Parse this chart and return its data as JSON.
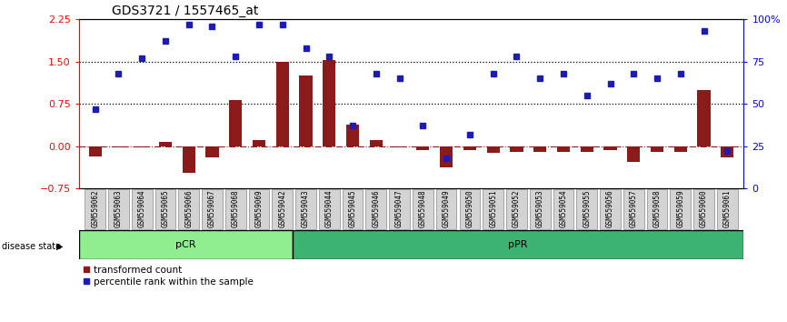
{
  "title": "GDS3721 / 1557465_at",
  "samples": [
    "GSM559062",
    "GSM559063",
    "GSM559064",
    "GSM559065",
    "GSM559066",
    "GSM559067",
    "GSM559068",
    "GSM559069",
    "GSM559042",
    "GSM559043",
    "GSM559044",
    "GSM559045",
    "GSM559046",
    "GSM559047",
    "GSM559048",
    "GSM559049",
    "GSM559050",
    "GSM559051",
    "GSM559052",
    "GSM559053",
    "GSM559054",
    "GSM559055",
    "GSM559056",
    "GSM559057",
    "GSM559058",
    "GSM559059",
    "GSM559060",
    "GSM559061"
  ],
  "transformed_count": [
    -0.18,
    -0.02,
    -0.02,
    0.07,
    -0.48,
    -0.2,
    0.82,
    0.1,
    1.5,
    1.25,
    1.52,
    0.38,
    0.1,
    -0.03,
    -0.07,
    -0.38,
    -0.07,
    -0.12,
    -0.1,
    -0.1,
    -0.1,
    -0.1,
    -0.07,
    -0.28,
    -0.1,
    -0.1,
    1.0,
    -0.2
  ],
  "percentile_pct": [
    47,
    68,
    77,
    87,
    97,
    96,
    78,
    97,
    97,
    83,
    78,
    37,
    68,
    65,
    37,
    18,
    32,
    68,
    78,
    65,
    68,
    55,
    62,
    68,
    65,
    68,
    93,
    22
  ],
  "pCR_count": 9,
  "pPR_count": 19,
  "bar_color": "#8B1A1A",
  "dot_color": "#1C1CB4",
  "ylim_left": [
    -0.75,
    2.25
  ],
  "ylim_right": [
    0,
    100
  ],
  "yticks_left": [
    -0.75,
    0,
    0.75,
    1.5,
    2.25
  ],
  "yticks_right": [
    0,
    25,
    50,
    75,
    100
  ],
  "hline_dotted": [
    0.75,
    1.5
  ],
  "pcr_color": "#90EE90",
  "ppr_color": "#3CB371",
  "title_fontsize": 10,
  "tick_label_fontsize": 5.5,
  "disease_label_fontsize": 7,
  "group_label_fontsize": 8,
  "legend_fontsize": 7.5
}
